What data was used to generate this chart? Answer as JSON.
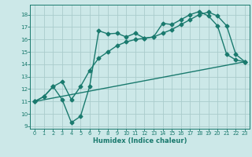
{
  "xlabel": "Humidex (Indice chaleur)",
  "bg_color": "#cce8e8",
  "grid_color": "#aacccc",
  "line_color": "#1a7a6e",
  "xlim": [
    -0.5,
    23.5
  ],
  "ylim": [
    8.8,
    18.8
  ],
  "yticks": [
    9,
    10,
    11,
    12,
    13,
    14,
    15,
    16,
    17,
    18
  ],
  "xticks": [
    0,
    1,
    2,
    3,
    4,
    5,
    6,
    7,
    8,
    9,
    10,
    11,
    12,
    13,
    14,
    15,
    16,
    17,
    18,
    19,
    20,
    21,
    22,
    23
  ],
  "curve1_x": [
    0,
    1,
    2,
    3,
    4,
    5,
    6,
    7,
    8,
    9,
    10,
    11,
    12,
    13,
    14,
    15,
    16,
    17,
    18,
    19,
    20,
    21,
    22,
    23
  ],
  "curve1_y": [
    11.0,
    11.4,
    12.2,
    11.15,
    9.3,
    9.8,
    12.2,
    16.7,
    16.45,
    16.5,
    16.2,
    16.5,
    16.1,
    16.2,
    17.3,
    17.2,
    17.6,
    18.0,
    18.25,
    17.9,
    17.1,
    14.8,
    14.35,
    14.2
  ],
  "curve2_x": [
    0,
    1,
    2,
    3,
    4,
    5,
    6,
    7,
    8,
    9,
    10,
    11,
    12,
    13,
    14,
    15,
    16,
    17,
    18,
    19,
    20,
    21,
    22,
    23
  ],
  "curve2_y": [
    11.0,
    11.4,
    12.2,
    12.6,
    11.15,
    12.2,
    13.5,
    14.5,
    15.0,
    15.5,
    15.8,
    16.0,
    16.1,
    16.2,
    16.5,
    16.8,
    17.2,
    17.6,
    18.0,
    18.2,
    17.9,
    17.1,
    14.8,
    14.2
  ],
  "curve3_x": [
    0,
    23
  ],
  "curve3_y": [
    11.0,
    14.2
  ]
}
